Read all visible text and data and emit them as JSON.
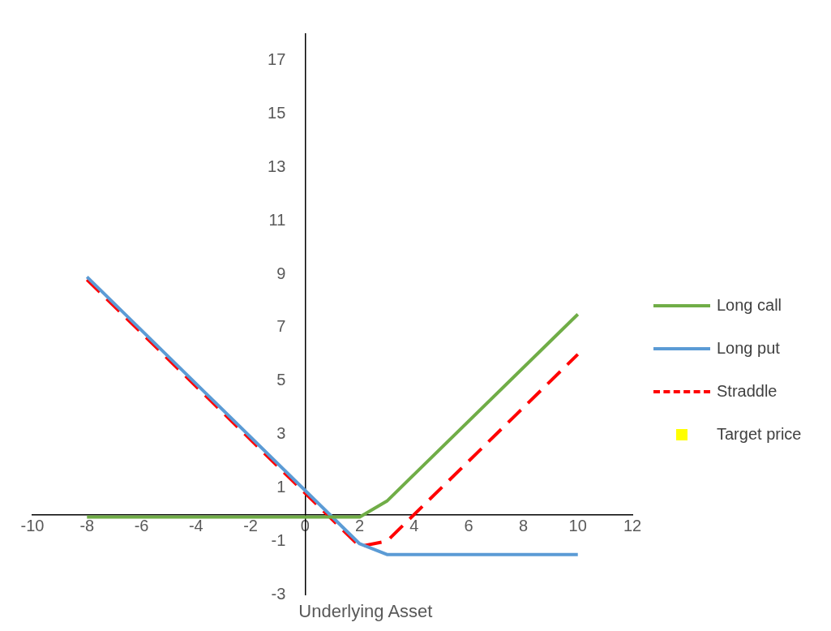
{
  "chart_data": {
    "type": "line",
    "xlabel": "Underlying Asset",
    "x": [
      -8,
      2,
      3,
      10
    ],
    "series": [
      {
        "name": "Long call",
        "color": "#70ad47",
        "values": [
          -0.1,
          -0.1,
          0.5,
          7.5
        ]
      },
      {
        "name": "Long put",
        "color": "#5b9bd5",
        "values": [
          8.9,
          -1.1,
          -1.5,
          -1.5
        ]
      },
      {
        "name": "Straddle",
        "color": "#ff0000",
        "values": [
          8.8,
          -1.2,
          -1,
          6
        ],
        "line_style": "dashed"
      },
      {
        "name": "Target price",
        "color": "#ffff00",
        "type": "scatter",
        "marker": "square",
        "values": [
          null,
          null,
          null,
          null
        ]
      }
    ],
    "xlim": [
      -10,
      12
    ],
    "xticks": [
      -10,
      -8,
      -6,
      -4,
      -2,
      0,
      2,
      4,
      6,
      8,
      10,
      12
    ],
    "ylim": [
      -3,
      18
    ],
    "yticks": [
      -3,
      -1,
      1,
      3,
      5,
      7,
      9,
      11,
      13,
      15,
      17
    ],
    "grid": false,
    "legend": "right",
    "marker": "none",
    "line_style": "solid"
  }
}
